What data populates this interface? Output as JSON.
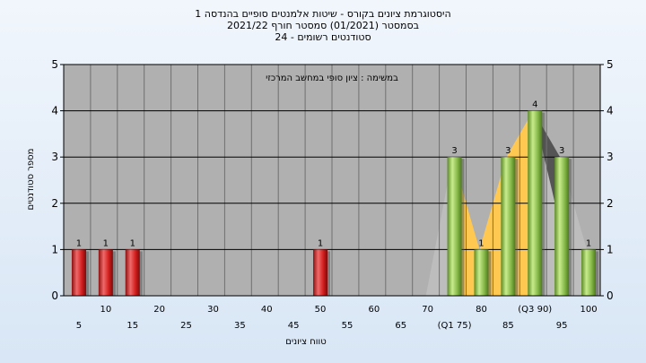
{
  "titles": {
    "line1": "היסטוגרמת ציונים בקורס - שיטות אלמנטים סופיים בהנדסה 1",
    "line2": "בסמסטר  (01/2021)  סמסטר חורף 2021/22",
    "line3": "סטודנטים רשומים - 24"
  },
  "chart_data": {
    "type": "bar",
    "annotation": "במשימה : ציון סופי במחשב המרכזי",
    "ylabel": "מספר סטודנטים",
    "xlabel": "טווח ציונים",
    "ylim": [
      0,
      5
    ],
    "yticks": [
      0,
      1,
      2,
      3,
      4,
      5
    ],
    "grid": true,
    "categories": [
      "5",
      "10",
      "15",
      "20",
      "25",
      "30",
      "35",
      "40",
      "45",
      "50",
      "55",
      "60",
      "65",
      "70",
      "(Q1 75)",
      "80",
      "85",
      "(Q3 90)",
      "95",
      "100"
    ],
    "values": [
      1,
      1,
      1,
      0,
      0,
      0,
      0,
      0,
      0,
      1,
      0,
      0,
      0,
      0,
      3,
      1,
      3,
      4,
      3,
      1
    ],
    "colors": {
      "below_pass": "#e02424",
      "above_pass": "#8cc04a",
      "band_light": "#bdbdbd",
      "band_mid": "#9a9a9a",
      "band_dark": "#555555",
      "iqr_band": "#ffc851",
      "plot_bg": "#b0b0b0"
    }
  }
}
